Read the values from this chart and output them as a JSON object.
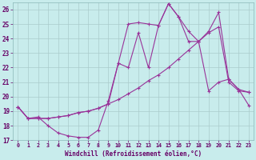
{
  "xlabel": "Windchill (Refroidissement éolien,°C)",
  "bg_color": "#c8ecec",
  "grid_color": "#aacccc",
  "line_color": "#993399",
  "xlim": [
    -0.5,
    23.5
  ],
  "ylim": [
    17,
    26.5
  ],
  "xticks": [
    0,
    1,
    2,
    3,
    4,
    5,
    6,
    7,
    8,
    9,
    10,
    11,
    12,
    13,
    14,
    15,
    16,
    17,
    18,
    19,
    20,
    21,
    22,
    23
  ],
  "yticks": [
    17,
    18,
    19,
    20,
    21,
    22,
    23,
    24,
    25,
    26
  ],
  "line1_x": [
    0,
    1,
    2,
    3,
    4,
    5,
    6,
    7,
    8,
    9,
    10,
    11,
    12,
    13,
    14,
    15,
    16,
    17,
    18,
    19,
    20,
    21,
    22,
    23
  ],
  "line1_y": [
    19.3,
    18.5,
    18.6,
    18.0,
    17.5,
    17.3,
    17.2,
    17.2,
    17.7,
    19.7,
    22.3,
    25.0,
    25.1,
    25.0,
    24.9,
    26.4,
    25.5,
    24.5,
    23.8,
    24.5,
    25.8,
    21.2,
    20.5,
    19.4
  ],
  "line2_x": [
    0,
    1,
    2,
    3,
    4,
    5,
    6,
    7,
    8,
    9,
    10,
    11,
    12,
    13,
    14,
    15,
    16,
    17,
    18,
    19,
    20,
    21,
    22,
    23
  ],
  "line2_y": [
    19.3,
    18.5,
    18.5,
    18.5,
    18.6,
    18.7,
    18.9,
    19.0,
    19.2,
    19.5,
    19.8,
    20.2,
    20.6,
    21.1,
    21.5,
    22.0,
    22.6,
    23.2,
    23.8,
    24.4,
    24.8,
    21.0,
    20.4,
    20.3
  ],
  "line3_x": [
    0,
    1,
    2,
    3,
    4,
    5,
    6,
    7,
    8,
    9,
    10,
    11,
    12,
    13,
    14,
    15,
    16,
    17,
    18,
    19,
    20,
    21,
    22,
    23
  ],
  "line3_y": [
    19.3,
    18.5,
    18.5,
    18.5,
    18.6,
    18.7,
    18.9,
    19.0,
    19.2,
    19.5,
    22.3,
    22.0,
    24.4,
    22.0,
    24.9,
    26.4,
    25.5,
    23.8,
    23.8,
    20.4,
    21.0,
    21.2,
    20.5,
    20.3
  ]
}
